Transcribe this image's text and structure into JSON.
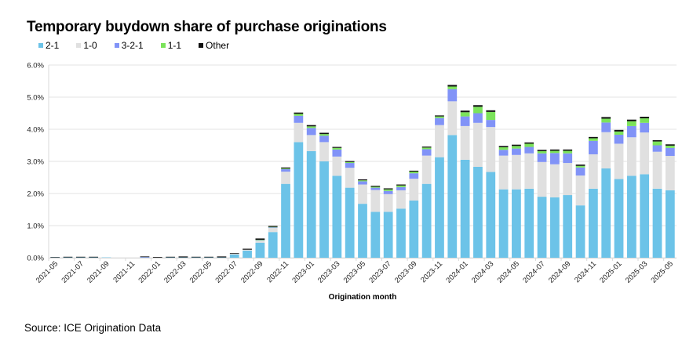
{
  "title": "Temporary buydown share of purchase originations",
  "source": "Source: ICE Origination Data",
  "legend": [
    {
      "label": "2-1",
      "color": "#6CC3E8"
    },
    {
      "label": "1-0",
      "color": "#E0E0E0"
    },
    {
      "label": "3-2-1",
      "color": "#8193F7"
    },
    {
      "label": "1-1",
      "color": "#7BE35A"
    },
    {
      "label": "Other",
      "color": "#111111"
    }
  ],
  "chart_data": {
    "type": "bar",
    "stacked": true,
    "title": "Temporary buydown share of purchase originations",
    "xlabel": "Origination month",
    "ylabel": "",
    "ylim": [
      0,
      6.0
    ],
    "yticks": [
      "0.0%",
      "1.0%",
      "2.0%",
      "3.0%",
      "4.0%",
      "5.0%",
      "6.0%"
    ],
    "grid": true,
    "legend_position": "top-left",
    "categories": [
      "2021-05",
      "2021-06",
      "2021-07",
      "2021-08",
      "2021-09",
      "2021-10",
      "2021-11",
      "2021-12",
      "2022-01",
      "2022-02",
      "2022-03",
      "2022-04",
      "2022-05",
      "2022-06",
      "2022-07",
      "2022-08",
      "2022-09",
      "2022-10",
      "2022-11",
      "2022-12",
      "2023-01",
      "2023-02",
      "2023-03",
      "2023-04",
      "2023-05",
      "2023-06",
      "2023-07",
      "2023-08",
      "2023-09",
      "2023-10",
      "2023-11",
      "2023-12",
      "2024-01",
      "2024-02",
      "2024-03",
      "2024-04",
      "2024-05",
      "2024-06",
      "2024-07",
      "2024-08",
      "2024-09",
      "2024-10",
      "2024-11",
      "2024-12",
      "2025-01",
      "2025-02",
      "2025-03",
      "2025-04",
      "2025-05"
    ],
    "tick_labels": [
      "2021-05",
      "2021-07",
      "2021-09",
      "2021-11",
      "2022-01",
      "2022-03",
      "2022-05",
      "2022-07",
      "2022-09",
      "2022-11",
      "2023-01",
      "2023-03",
      "2023-05",
      "2023-07",
      "2023-09",
      "2023-11",
      "2024-01",
      "2024-03",
      "2024-05",
      "2024-07",
      "2024-09",
      "2024-11",
      "2025-01",
      "2025-03",
      "2025-05"
    ],
    "series": [
      {
        "name": "2-1",
        "color": "#6CC3E8",
        "values": [
          0.01,
          0.01,
          0.01,
          0.01,
          0.01,
          0.0,
          0.0,
          0.01,
          0.0,
          0.01,
          0.01,
          0.01,
          0.01,
          0.01,
          0.1,
          0.22,
          0.47,
          0.8,
          2.3,
          3.6,
          3.32,
          3.0,
          2.55,
          2.18,
          1.68,
          1.43,
          1.43,
          1.53,
          1.78,
          2.3,
          3.13,
          3.82,
          3.05,
          2.83,
          2.67,
          2.13,
          2.13,
          2.15,
          1.9,
          1.88,
          1.95,
          1.63,
          2.15,
          2.78,
          2.45,
          2.55,
          2.6,
          2.15,
          2.1
        ]
      },
      {
        "name": "1-0",
        "color": "#E0E0E0",
        "values": [
          0.0,
          0.0,
          0.0,
          0.0,
          0.0,
          0.0,
          0.0,
          0.0,
          0.0,
          0.0,
          0.0,
          0.0,
          0.0,
          0.0,
          0.02,
          0.03,
          0.07,
          0.13,
          0.38,
          0.6,
          0.5,
          0.6,
          0.6,
          0.62,
          0.6,
          0.68,
          0.55,
          0.57,
          0.68,
          0.88,
          1.0,
          1.05,
          1.05,
          1.37,
          1.4,
          1.05,
          1.07,
          1.1,
          1.08,
          1.03,
          1.0,
          0.93,
          1.07,
          1.13,
          1.1,
          1.2,
          1.3,
          1.15,
          1.07
        ]
      },
      {
        "name": "3-2-1",
        "color": "#8193F7",
        "values": [
          0.0,
          0.0,
          0.0,
          0.0,
          0.0,
          0.0,
          0.0,
          0.01,
          0.0,
          0.0,
          0.0,
          0.0,
          0.0,
          0.0,
          0.0,
          0.0,
          0.01,
          0.02,
          0.08,
          0.22,
          0.22,
          0.2,
          0.22,
          0.15,
          0.1,
          0.07,
          0.1,
          0.1,
          0.17,
          0.2,
          0.22,
          0.38,
          0.3,
          0.3,
          0.22,
          0.18,
          0.2,
          0.2,
          0.27,
          0.35,
          0.3,
          0.25,
          0.42,
          0.3,
          0.28,
          0.35,
          0.3,
          0.2,
          0.25
        ]
      },
      {
        "name": "1-1",
        "color": "#7BE35A",
        "values": [
          0.0,
          0.0,
          0.0,
          0.0,
          0.0,
          0.0,
          0.0,
          0.0,
          0.0,
          0.0,
          0.0,
          0.0,
          0.0,
          0.0,
          0.0,
          0.0,
          0.01,
          0.01,
          0.02,
          0.06,
          0.05,
          0.05,
          0.05,
          0.03,
          0.03,
          0.03,
          0.05,
          0.05,
          0.05,
          0.05,
          0.05,
          0.08,
          0.13,
          0.2,
          0.25,
          0.08,
          0.08,
          0.1,
          0.07,
          0.07,
          0.08,
          0.05,
          0.08,
          0.12,
          0.1,
          0.15,
          0.14,
          0.12,
          0.07
        ]
      },
      {
        "name": "Other",
        "color": "#111111",
        "values": [
          0.01,
          0.02,
          0.02,
          0.02,
          0.0,
          0.0,
          0.0,
          0.02,
          0.02,
          0.02,
          0.03,
          0.02,
          0.02,
          0.03,
          0.02,
          0.03,
          0.04,
          0.03,
          0.03,
          0.04,
          0.04,
          0.04,
          0.03,
          0.03,
          0.03,
          0.03,
          0.03,
          0.03,
          0.03,
          0.03,
          0.03,
          0.05,
          0.05,
          0.05,
          0.05,
          0.04,
          0.04,
          0.04,
          0.04,
          0.04,
          0.04,
          0.04,
          0.04,
          0.05,
          0.05,
          0.05,
          0.05,
          0.04,
          0.04
        ]
      }
    ]
  }
}
